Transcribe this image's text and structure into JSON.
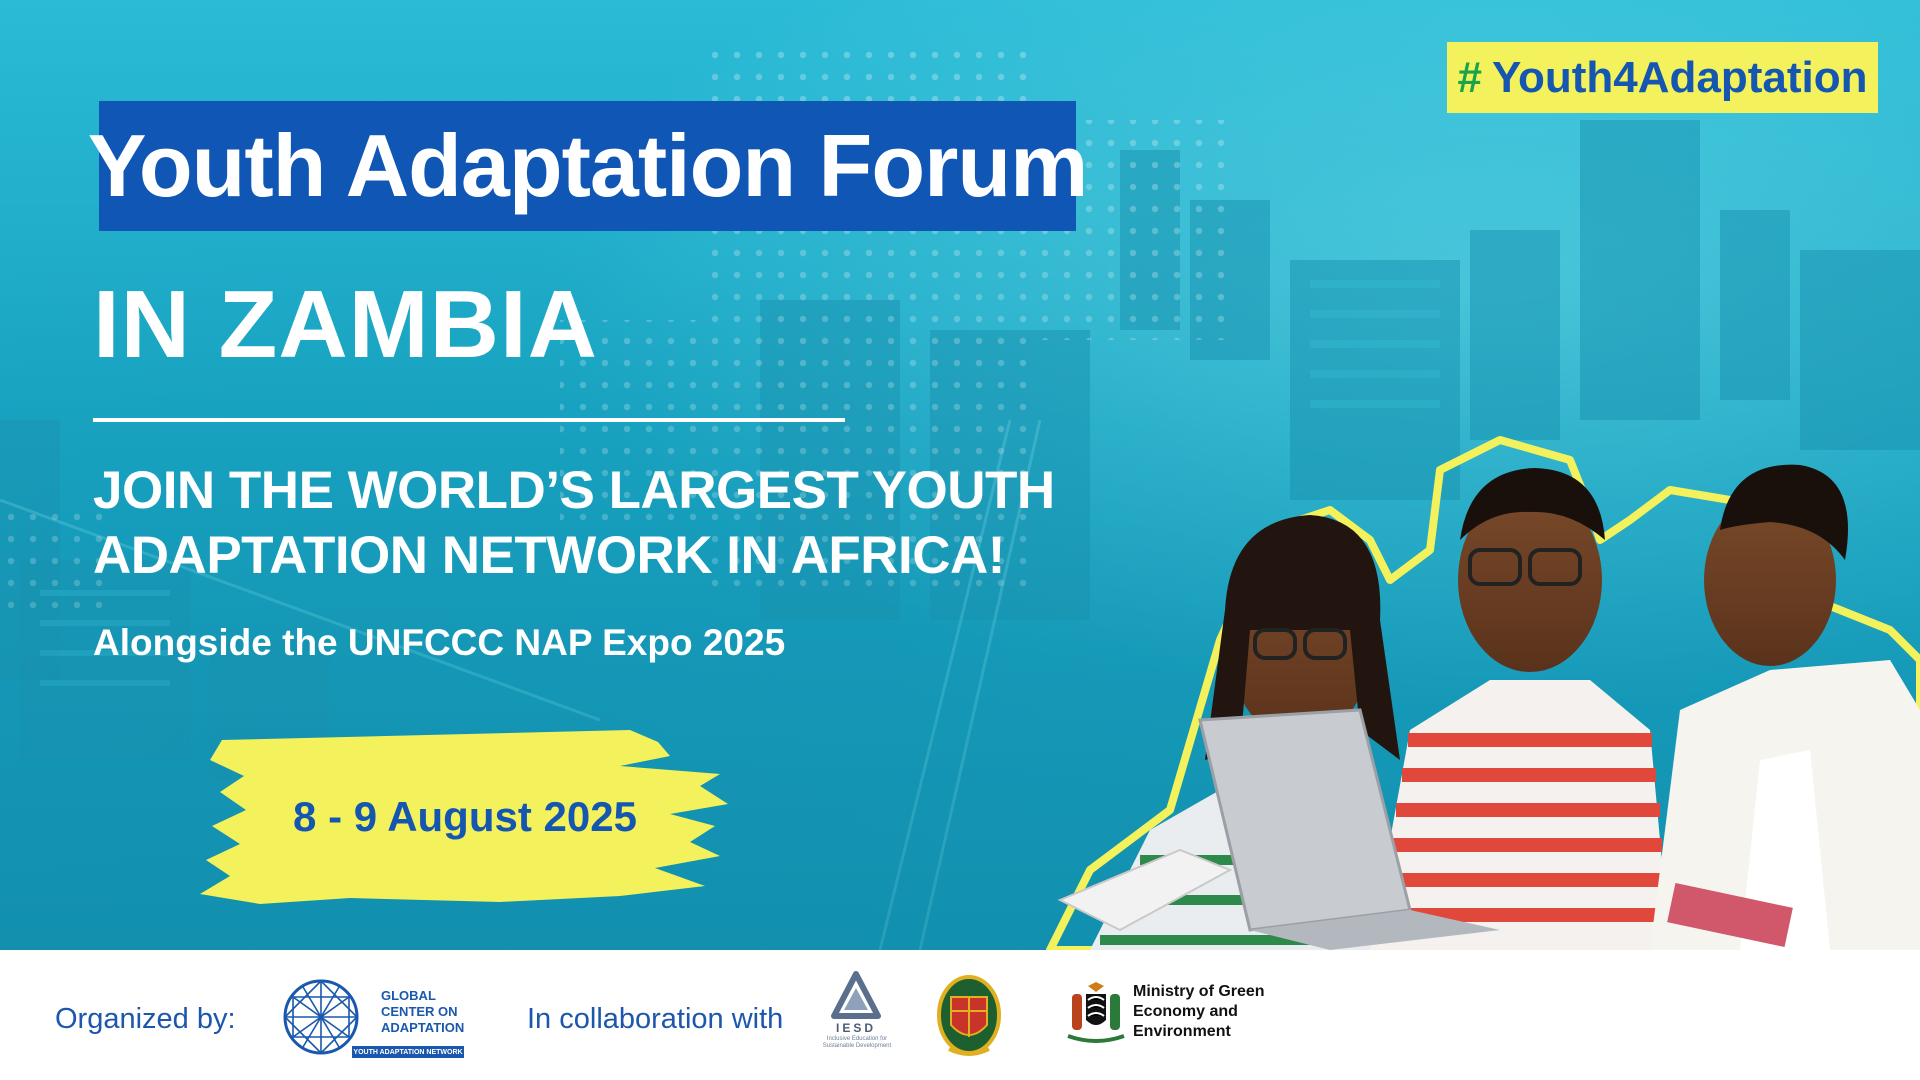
{
  "hashtag": {
    "symbol": "#",
    "text": "Youth4Adaptation"
  },
  "title": "Youth Adaptation Forum",
  "subtitle": "IN ZAMBIA",
  "tagline": {
    "line1": "JOIN THE WORLD’S LARGEST YOUTH",
    "line2": "ADAPTATION NETWORK IN AFRICA!"
  },
  "expo": "Alongside the UNFCCC NAP Expo 2025",
  "date": "8 - 9 August 2025",
  "footer": {
    "organized_label": "Organized by:",
    "collab_label": "In collaboration with",
    "gca": {
      "line1": "GLOBAL",
      "line2": "CENTER ON",
      "line3": "ADAPTATION",
      "strip": "YOUTH ADAPTATION NETWORK"
    },
    "iesd": {
      "name": "IESD",
      "subtitle": "Inclusive Education for Sustainable Development"
    },
    "ministry": {
      "line1": "Ministry of Green",
      "line2": "Economy and",
      "line3": "Environment"
    }
  },
  "colors": {
    "title_bg": "#1056b5",
    "hashtag_bg": "#f3f25c",
    "date_highlight": "#f3f25c",
    "text_blue": "#1456b0",
    "banner_teal": "#1aa9c7"
  },
  "icons": [
    "gca-geodesic-globe-logo",
    "iesd-triangle-logo",
    "university-of-zambia-crest",
    "zambia-coat-of-arms"
  ]
}
